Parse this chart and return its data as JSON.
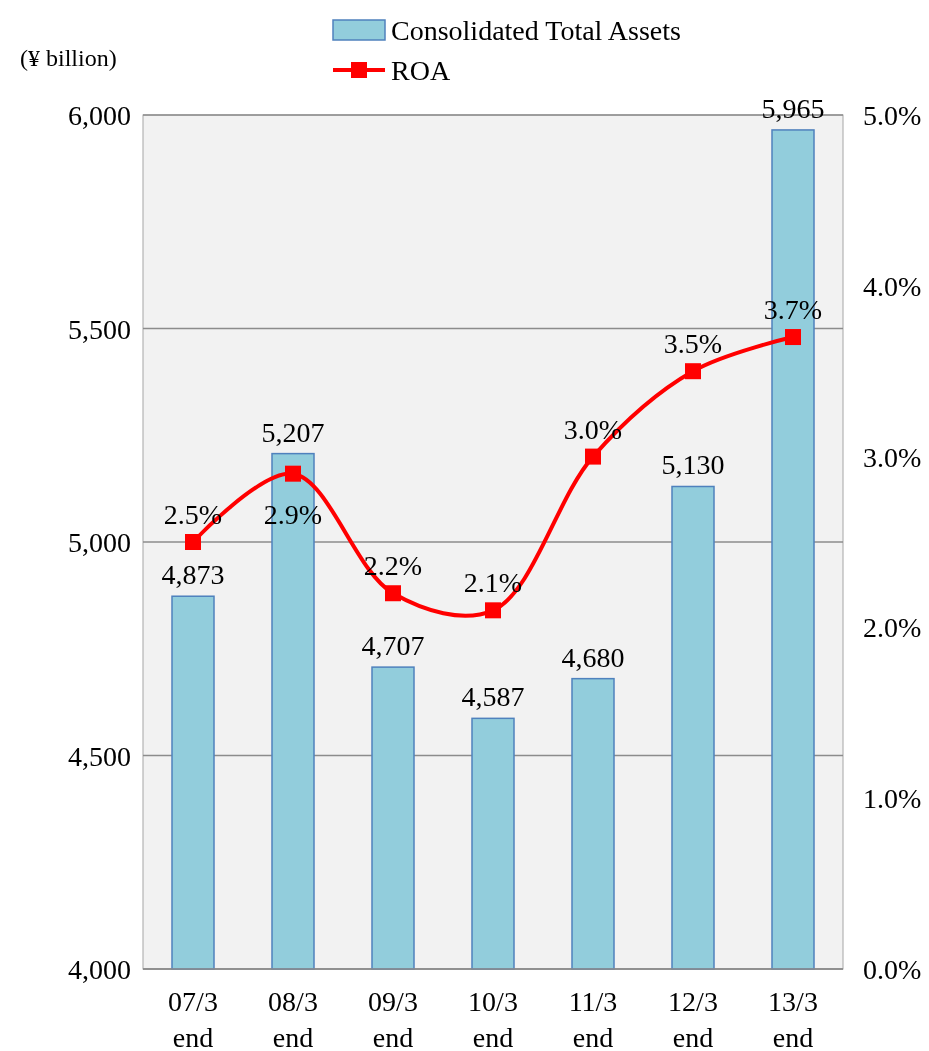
{
  "chart_data": {
    "type": "bar",
    "ylabel": "(¥ billion)",
    "categories": [
      "07/3\nend",
      "08/3\nend",
      "09/3\nend",
      "10/3\nend",
      "11/3\nend",
      "12/3\nend",
      "13/3\nend"
    ],
    "series": [
      {
        "name": "Consolidated Total Assets",
        "color": "#92cddc",
        "values": [
          4873,
          5207,
          4707,
          4587,
          4680,
          5130,
          5965
        ]
      },
      {
        "name": "ROA",
        "type": "line",
        "axis": "y2",
        "color": "#ff0000",
        "marker": "square",
        "values": [
          2.5,
          2.9,
          2.2,
          2.1,
          3.0,
          3.5,
          3.7
        ]
      }
    ],
    "ylim": [
      4000,
      6000
    ],
    "yticks": [
      {
        "value": 4000,
        "label": "4,000"
      },
      {
        "value": 4500,
        "label": "4,500"
      },
      {
        "value": 5000,
        "label": "5,000"
      },
      {
        "value": 5500,
        "label": "5,500"
      },
      {
        "value": 6000,
        "label": "6,000"
      }
    ],
    "y2lim": [
      0,
      5
    ],
    "y2ticks": [
      {
        "value": 0,
        "label": "0.0%"
      },
      {
        "value": 1,
        "label": "1.0%"
      },
      {
        "value": 2,
        "label": "2.0%"
      },
      {
        "value": 3,
        "label": "3.0%"
      },
      {
        "value": 4,
        "label": "4.0%"
      },
      {
        "value": 5,
        "label": "5.0%"
      }
    ],
    "value_labels": [
      [
        "4,873",
        "5,207",
        "4,707",
        "4,587",
        "4,680",
        "5,130",
        "5,965"
      ],
      [
        "2.5%",
        "2.9%",
        "2.2%",
        "2.1%",
        "3.0%",
        "3.5%",
        "3.7%"
      ]
    ],
    "grid": "y",
    "legend": "top"
  }
}
